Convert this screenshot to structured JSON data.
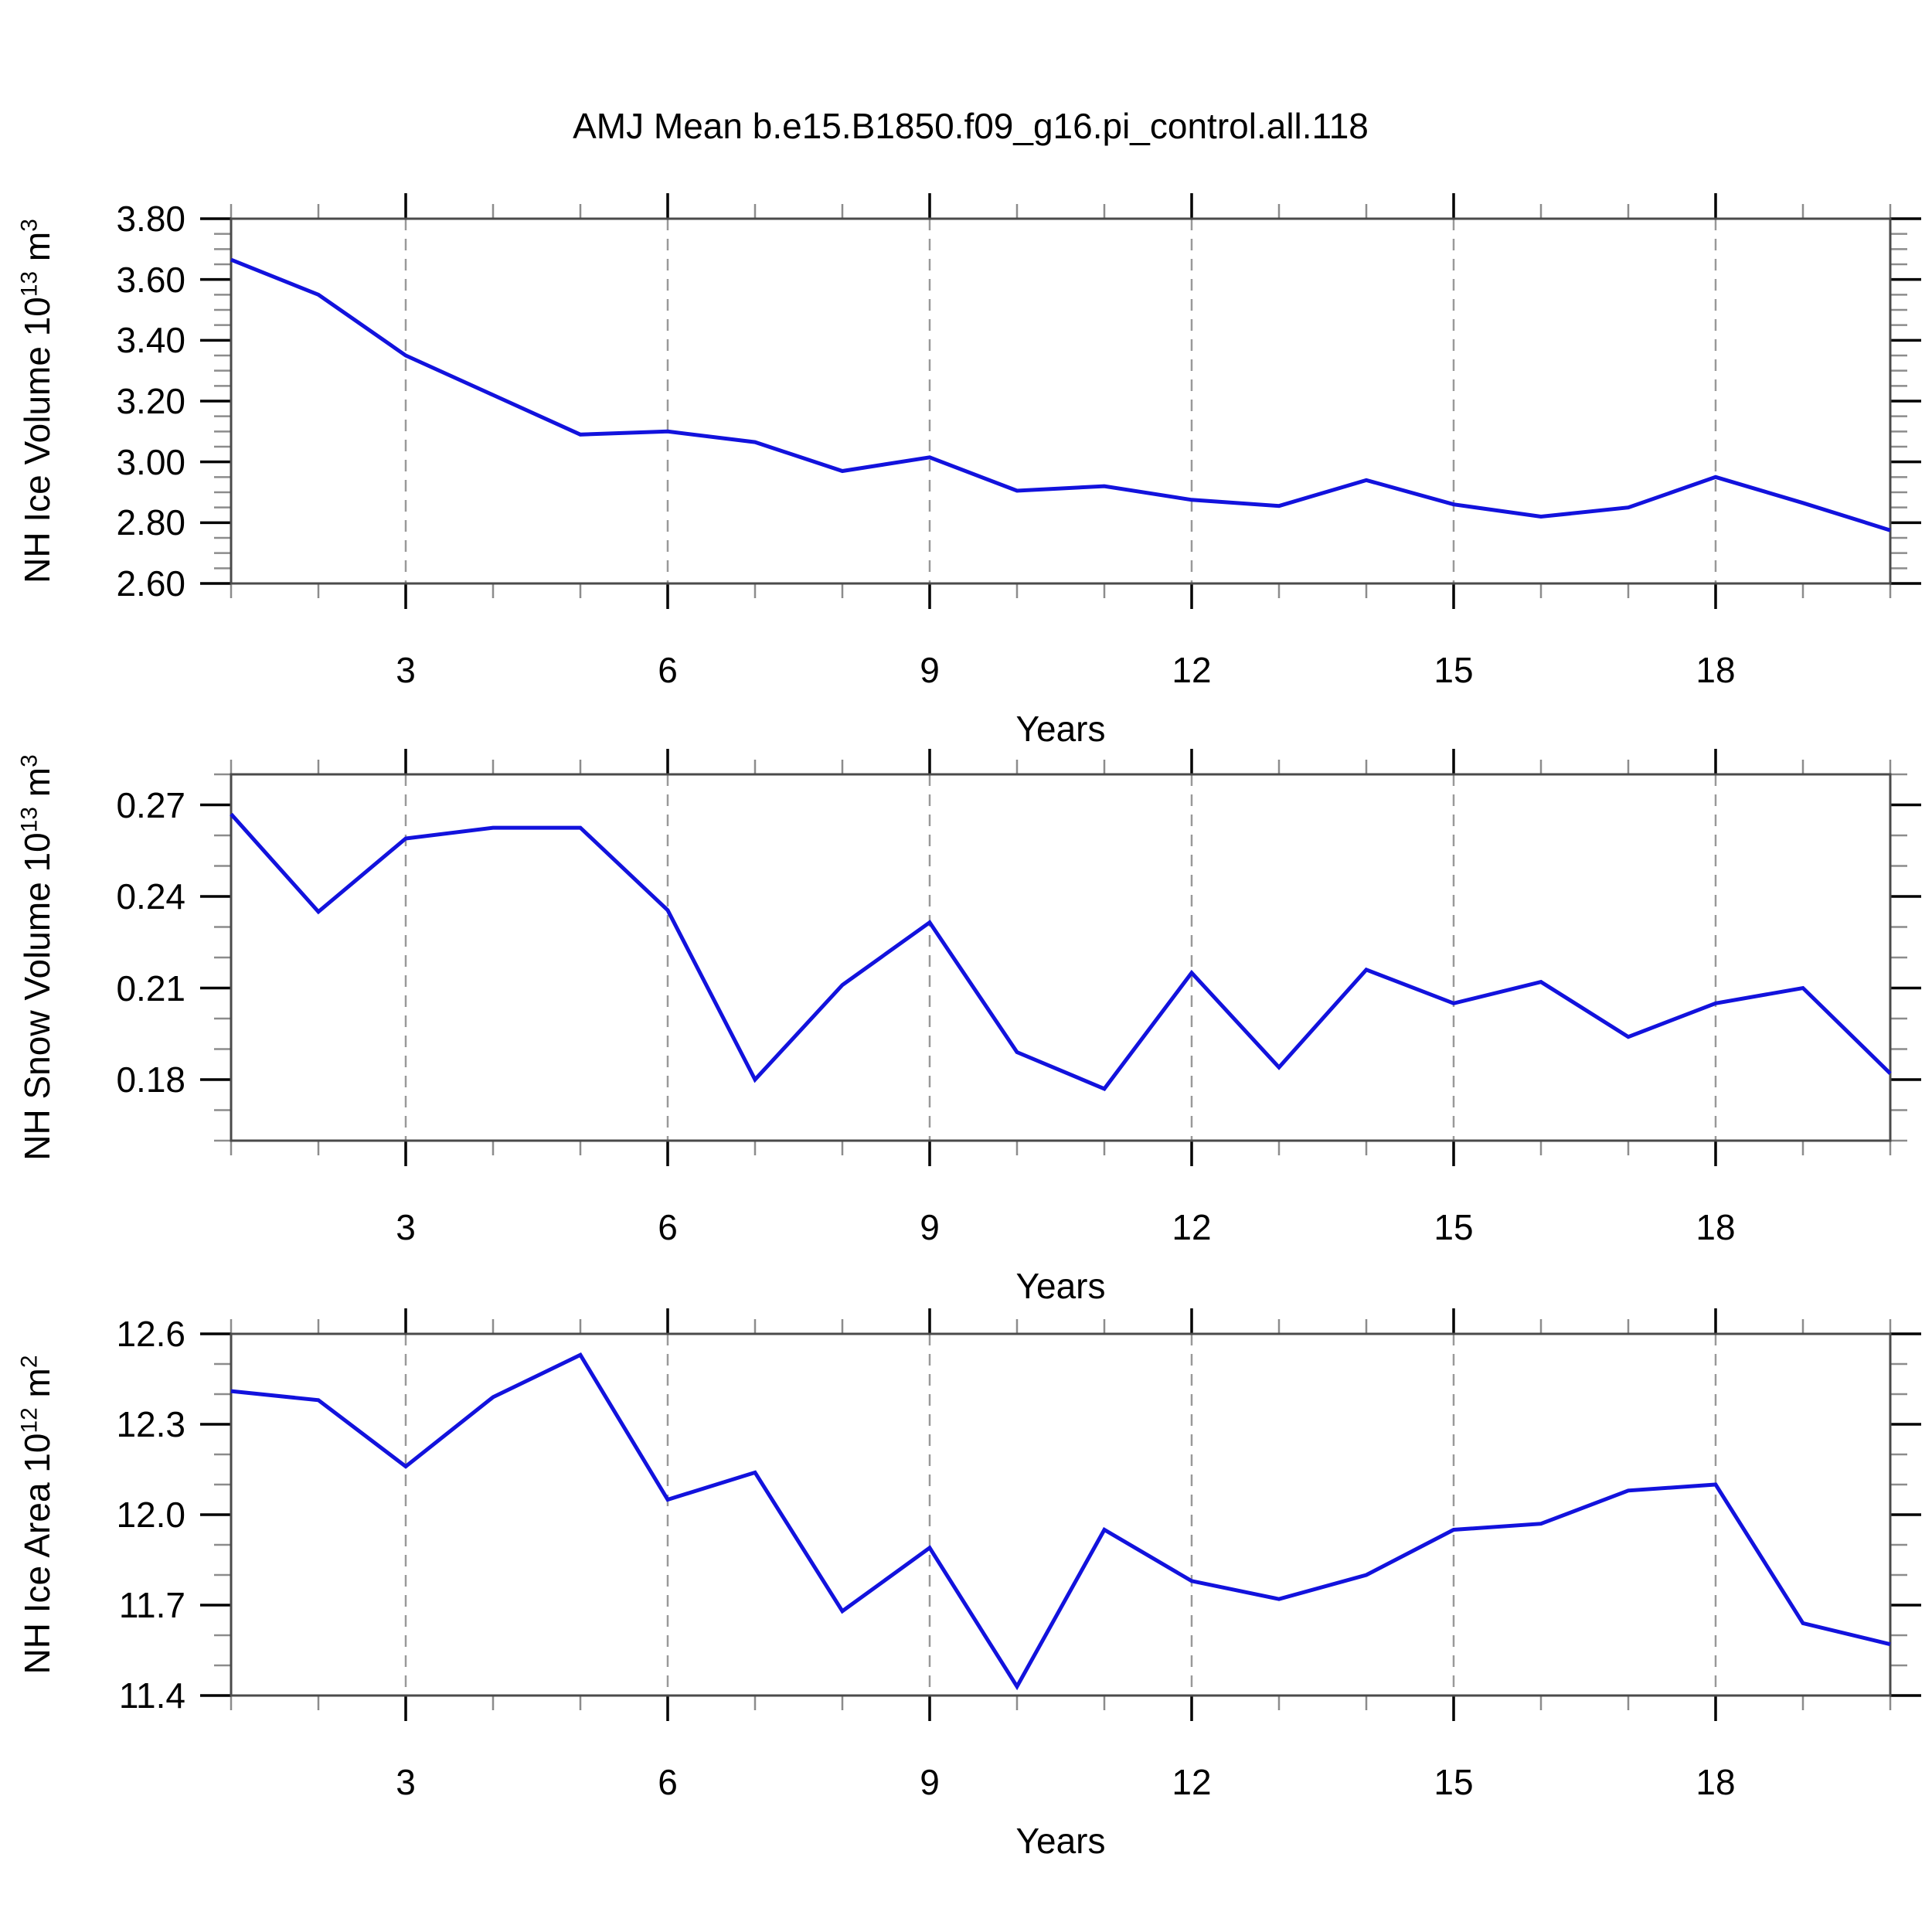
{
  "title": "AMJ Mean b.e15.B1850.f09_g16.pi_control.all.118",
  "colors": {
    "background": "#ffffff",
    "line": "#1212dd",
    "frame": "#4a4a4a",
    "major_tick": "#000000",
    "minor_tick": "#8c8c8c",
    "grid": "#999999",
    "text": "#000000"
  },
  "x_axis": {
    "label": "Years",
    "range": [
      1,
      20
    ],
    "major_ticks": [
      3,
      6,
      9,
      12,
      15,
      18
    ],
    "major_tick_labels": [
      "3",
      "6",
      "9",
      "12",
      "15",
      "18"
    ],
    "minor_tick_step": 1,
    "gridlines": "vertical-dashed-at-major-ticks"
  },
  "chart_data": [
    {
      "type": "line",
      "name": "nh-ice-volume",
      "ylabel_text": "NH Ice Volume 10^13 m^3",
      "ylabel_parts": [
        {
          "text": "NH Ice Volume 10",
          "sup": false
        },
        {
          "text": "13",
          "sup": true
        },
        {
          "text": " m",
          "sup": false
        },
        {
          "text": "3",
          "sup": true
        }
      ],
      "ylim": [
        2.6,
        3.8
      ],
      "yminor_step": 0.05,
      "ytick_labels": [
        {
          "value": 3.8,
          "label": "3.80"
        },
        {
          "value": 3.6,
          "label": "3.60"
        },
        {
          "value": 3.4,
          "label": "3.40"
        },
        {
          "value": 3.2,
          "label": "3.20"
        },
        {
          "value": 3.0,
          "label": "3.00"
        },
        {
          "value": 2.8,
          "label": "2.80"
        },
        {
          "value": 2.6,
          "label": "2.60"
        }
      ],
      "xlabel": "Years",
      "x": [
        1,
        2,
        3,
        4,
        5,
        6,
        7,
        8,
        9,
        10,
        11,
        12,
        13,
        14,
        15,
        16,
        17,
        18,
        19,
        20
      ],
      "values": [
        3.665,
        3.55,
        3.35,
        3.22,
        3.09,
        3.1,
        3.065,
        2.97,
        3.015,
        2.905,
        2.92,
        2.875,
        2.855,
        2.94,
        2.86,
        2.82,
        2.85,
        2.95,
        2.865,
        2.775
      ]
    },
    {
      "type": "line",
      "name": "nh-snow-volume",
      "ylabel_text": "NH Snow Volume 10^13 m^3",
      "ylabel_parts": [
        {
          "text": "NH Snow Volume 10",
          "sup": false
        },
        {
          "text": "13",
          "sup": true
        },
        {
          "text": " m",
          "sup": false
        },
        {
          "text": "3",
          "sup": true
        }
      ],
      "ylim": [
        0.16,
        0.28
      ],
      "yminor_step": 0.01,
      "ytick_labels": [
        {
          "value": 0.27,
          "label": "0.27"
        },
        {
          "value": 0.24,
          "label": "0.24"
        },
        {
          "value": 0.21,
          "label": "0.21"
        },
        {
          "value": 0.18,
          "label": "0.18"
        }
      ],
      "xlabel": "Years",
      "x": [
        1,
        2,
        3,
        4,
        5,
        6,
        7,
        8,
        9,
        10,
        11,
        12,
        13,
        14,
        15,
        16,
        17,
        18,
        19,
        20
      ],
      "values": [
        0.267,
        0.235,
        0.259,
        0.2625,
        0.2625,
        0.2355,
        0.18,
        0.211,
        0.2315,
        0.189,
        0.177,
        0.215,
        0.184,
        0.216,
        0.205,
        0.212,
        0.194,
        0.205,
        0.21,
        0.182
      ]
    },
    {
      "type": "line",
      "name": "nh-ice-area",
      "ylabel_text": "NH Ice Area 10^12 m^2",
      "ylabel_parts": [
        {
          "text": "NH Ice Area 10",
          "sup": false
        },
        {
          "text": "12",
          "sup": true
        },
        {
          "text": " m",
          "sup": false
        },
        {
          "text": "2",
          "sup": true
        }
      ],
      "ylim": [
        11.4,
        12.6
      ],
      "yminor_step": 0.1,
      "ytick_labels": [
        {
          "value": 12.6,
          "label": "12.6"
        },
        {
          "value": 12.3,
          "label": "12.3"
        },
        {
          "value": 12.0,
          "label": "12.0"
        },
        {
          "value": 11.7,
          "label": "11.7"
        },
        {
          "value": 11.4,
          "label": "11.4"
        }
      ],
      "xlabel": "Years",
      "x": [
        1,
        2,
        3,
        4,
        5,
        6,
        7,
        8,
        9,
        10,
        11,
        12,
        13,
        14,
        15,
        16,
        17,
        18,
        19,
        20
      ],
      "values": [
        12.41,
        12.38,
        12.16,
        12.39,
        12.53,
        12.05,
        12.14,
        11.68,
        11.89,
        11.43,
        11.95,
        11.78,
        11.72,
        11.8,
        11.95,
        11.97,
        12.08,
        12.1,
        11.64,
        11.57
      ]
    }
  ]
}
